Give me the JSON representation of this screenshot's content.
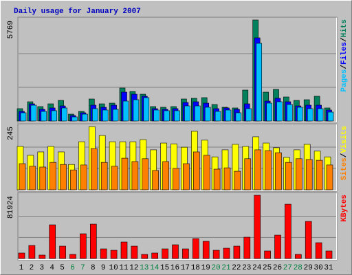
{
  "chart_data": [
    {
      "type": "bar",
      "title": "Daily usage for January 2007",
      "ylim": [
        0,
        5769
      ],
      "yticks": [
        5769
      ],
      "grid_divisions": 3,
      "legend_separator": "/",
      "series": [
        {
          "name": "Hits",
          "color": "#00805c",
          "values": [
            706,
            1099,
            824,
            981,
            1177,
            392,
            549,
            1256,
            981,
            1020,
            1884,
            1687,
            1530,
            824,
            785,
            824,
            1256,
            1295,
            1334,
            942,
            785,
            746,
            1766,
            5769,
            1648,
            1805,
            1373,
            1177,
            1216,
            1413,
            746
          ]
        },
        {
          "name": "Files",
          "color": "#0000ff",
          "values": [
            549,
            981,
            667,
            746,
            863,
            314,
            471,
            903,
            785,
            903,
            1648,
            1530,
            1413,
            706,
            667,
            706,
            1059,
            1099,
            1020,
            706,
            746,
            667,
            981,
            4748,
            1138,
            1295,
            1099,
            863,
            903,
            903,
            628
          ]
        },
        {
          "name": "Pages",
          "color": "#00c0ff",
          "values": [
            471,
            903,
            549,
            589,
            746,
            235,
            392,
            706,
            628,
            667,
            1138,
            1216,
            1334,
            628,
            589,
            589,
            863,
            863,
            785,
            549,
            628,
            471,
            706,
            4434,
            1020,
            1099,
            942,
            785,
            706,
            706,
            510
          ]
        }
      ]
    },
    {
      "type": "bar",
      "ylim": [
        0,
        245
      ],
      "yticks": [
        245
      ],
      "grid_divisions": 3,
      "legend_separator": "/",
      "series": [
        {
          "name": "Visits",
          "color": "#ffff00",
          "values": [
            166,
            132,
            145,
            166,
            145,
            97,
            184,
            242,
            208,
            184,
            184,
            184,
            192,
            153,
            179,
            176,
            163,
            224,
            190,
            126,
            153,
            174,
            166,
            203,
            179,
            161,
            124,
            153,
            174,
            148,
            126
          ]
        },
        {
          "name": "Sites",
          "color": "#ff8000",
          "values": [
            100,
            90,
            87,
            105,
            97,
            76,
            95,
            158,
            105,
            90,
            121,
            108,
            119,
            74,
            108,
            82,
            100,
            145,
            132,
            79,
            84,
            71,
            119,
            153,
            150,
            142,
            105,
            119,
            116,
            113,
            95
          ]
        }
      ]
    },
    {
      "type": "bar",
      "ylim": [
        0,
        81924
      ],
      "yticks": [
        81924
      ],
      "grid_divisions": 3,
      "legend_separator": "/",
      "categories": [
        "1",
        "2",
        "3",
        "4",
        "5",
        "6",
        "7",
        "8",
        "9",
        "10",
        "11",
        "12",
        "13",
        "14",
        "15",
        "16",
        "17",
        "18",
        "19",
        "20",
        "21",
        "22",
        "23",
        "24",
        "25",
        "26",
        "27",
        "28",
        "29",
        "30",
        "31"
      ],
      "category_colors": [
        "#000000",
        "#000000",
        "#000000",
        "#000000",
        "#000000",
        "#008040",
        "#008040",
        "#000000",
        "#000000",
        "#000000",
        "#000000",
        "#000000",
        "#008040",
        "#008040",
        "#000000",
        "#000000",
        "#000000",
        "#000000",
        "#000000",
        "#008040",
        "#008040",
        "#000000",
        "#000000",
        "#000000",
        "#000000",
        "#000000",
        "#008040",
        "#008040",
        "#000000",
        "#000000",
        "#000000"
      ],
      "series": [
        {
          "name": "KBytes",
          "color": "#ff0000",
          "values": [
            7120,
            16910,
            4450,
            43610,
            16020,
            5340,
            32040,
            44500,
            12460,
            10680,
            21360,
            16020,
            5340,
            7120,
            12460,
            17800,
            12460,
            25810,
            22250,
            10680,
            13350,
            16020,
            27590,
            81924,
            9790,
            30260,
            70310,
            5340,
            48060,
            20470,
            9790
          ]
        }
      ]
    }
  ]
}
